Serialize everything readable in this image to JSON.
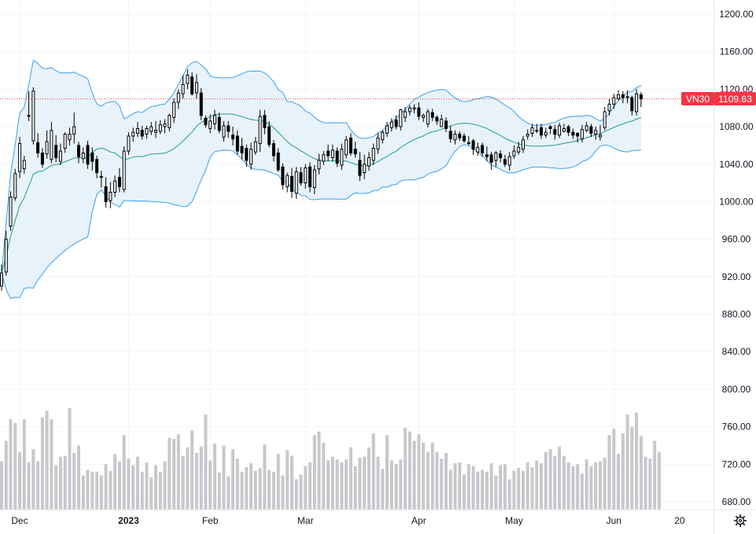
{
  "chart_data": {
    "type": "candlestick",
    "symbol": "VN30",
    "last_price": "1109.63",
    "colors": {
      "up_body": "#ffffff",
      "down_body": "#000000",
      "wick": "#000000",
      "bb_band": "#3ca0e6",
      "bb_fill": "#e8f2fb",
      "bb_basis": "#1e9e8e",
      "volume": "#c8c8cc",
      "price_line": "#e53935",
      "badge": "#f23645",
      "grid": "#f0f3fa"
    },
    "y_axis": {
      "range": [
        670,
        1210
      ],
      "ticks": [
        "1200.00",
        "1160.00",
        "1120.00",
        "1080.00",
        "1040.00",
        "1000.00",
        "960.00",
        "920.00",
        "880.00",
        "840.00",
        "800.00",
        "760.00",
        "720.00",
        "680.00"
      ]
    },
    "x_axis": {
      "labels": [
        {
          "text": "Dec",
          "bold": false,
          "index": 4
        },
        {
          "text": "2023",
          "bold": true,
          "index": 28
        },
        {
          "text": "Feb",
          "bold": false,
          "index": 46
        },
        {
          "text": "Mar",
          "bold": false,
          "index": 67
        },
        {
          "text": "Apr",
          "bold": false,
          "index": 92
        },
        {
          "text": "May",
          "bold": false,
          "index": 113
        },
        {
          "text": "Jun",
          "bold": false,
          "index": 135
        },
        {
          "text": "20",
          "bold": false,
          "index": 149.5
        }
      ]
    },
    "closes": [
      924,
      960,
      1005,
      1030,
      1062,
      1044,
      1092,
      1118,
      1052,
      1040,
      1064,
      1076,
      1047,
      1054,
      1072,
      1072,
      1080,
      1048,
      1052,
      1040,
      1043,
      1031,
      1026,
      1000,
      1010,
      1022,
      1016,
      1054,
      1070,
      1074,
      1078,
      1070,
      1078,
      1080,
      1076,
      1082,
      1083,
      1092,
      1106,
      1116,
      1125,
      1135,
      1115,
      1127,
      1092,
      1082,
      1086,
      1092,
      1076,
      1081,
      1075,
      1067,
      1054,
      1052,
      1044,
      1056,
      1064,
      1091,
      1079,
      1061,
      1049,
      1034,
      1018,
      1028,
      1011,
      1032,
      1020,
      1036,
      1016,
      1034,
      1044,
      1050,
      1049,
      1055,
      1041,
      1056,
      1066,
      1052,
      1051,
      1028,
      1040,
      1047,
      1057,
      1068,
      1074,
      1081,
      1085,
      1080,
      1098,
      1096,
      1100,
      1100,
      1091,
      1092,
      1096,
      1090,
      1086,
      1088,
      1078,
      1067,
      1072,
      1068,
      1065,
      1063,
      1056,
      1058,
      1052,
      1048,
      1042,
      1052,
      1047,
      1040,
      1048,
      1054,
      1058,
      1066,
      1072,
      1079,
      1076,
      1071,
      1074,
      1078,
      1072,
      1081,
      1078,
      1074,
      1071,
      1070,
      1077,
      1081,
      1073,
      1076,
      1071,
      1096,
      1104,
      1111,
      1114,
      1111,
      1112,
      1097,
      1115,
      1109.63
    ],
    "opens": [
      910,
      925,
      974,
      1004,
      1032,
      1035,
      1092,
      1065,
      1063,
      1052,
      1051,
      1045,
      1060,
      1043,
      1057,
      1066,
      1072,
      1060,
      1046,
      1060,
      1052,
      1045,
      1027,
      1016,
      1001,
      1010,
      1026,
      1013,
      1054,
      1070,
      1073,
      1076,
      1072,
      1075,
      1074,
      1075,
      1080,
      1079,
      1090,
      1106,
      1115,
      1126,
      1133,
      1116,
      1116,
      1089,
      1078,
      1083,
      1090,
      1069,
      1081,
      1071,
      1070,
      1059,
      1057,
      1040,
      1053,
      1062,
      1092,
      1080,
      1062,
      1052,
      1037,
      1016,
      1027,
      1009,
      1031,
      1020,
      1037,
      1015,
      1035,
      1043,
      1054,
      1047,
      1054,
      1039,
      1050,
      1068,
      1056,
      1044,
      1031,
      1038,
      1044,
      1056,
      1066,
      1073,
      1079,
      1087,
      1080,
      1090,
      1096,
      1099,
      1100,
      1090,
      1083,
      1095,
      1090,
      1080,
      1086,
      1075,
      1066,
      1072,
      1070,
      1062,
      1065,
      1053,
      1060,
      1050,
      1050,
      1044,
      1051,
      1045,
      1039,
      1049,
      1053,
      1056,
      1070,
      1073,
      1076,
      1079,
      1071,
      1080,
      1077,
      1071,
      1075,
      1080,
      1074,
      1073,
      1067,
      1076,
      1080,
      1072,
      1069,
      1079,
      1097,
      1104,
      1110,
      1114,
      1111,
      1111,
      1096,
      1114
    ],
    "highs": [
      933,
      969,
      1011,
      1035,
      1069,
      1049,
      1118,
      1122,
      1073,
      1057,
      1076,
      1085,
      1071,
      1062,
      1074,
      1079,
      1095,
      1064,
      1058,
      1065,
      1058,
      1049,
      1033,
      1026,
      1021,
      1028,
      1036,
      1059,
      1074,
      1079,
      1085,
      1081,
      1081,
      1085,
      1086,
      1087,
      1088,
      1094,
      1110,
      1120,
      1135,
      1141,
      1138,
      1136,
      1121,
      1092,
      1093,
      1098,
      1095,
      1086,
      1086,
      1080,
      1076,
      1068,
      1061,
      1063,
      1069,
      1098,
      1098,
      1086,
      1066,
      1057,
      1041,
      1031,
      1036,
      1037,
      1037,
      1040,
      1042,
      1039,
      1051,
      1054,
      1061,
      1061,
      1058,
      1062,
      1070,
      1073,
      1064,
      1053,
      1050,
      1053,
      1062,
      1073,
      1076,
      1085,
      1089,
      1092,
      1099,
      1101,
      1103,
      1104,
      1106,
      1094,
      1099,
      1099,
      1092,
      1093,
      1090,
      1081,
      1076,
      1075,
      1073,
      1070,
      1067,
      1063,
      1063,
      1059,
      1053,
      1054,
      1055,
      1050,
      1053,
      1060,
      1064,
      1070,
      1077,
      1083,
      1083,
      1083,
      1079,
      1082,
      1082,
      1084,
      1083,
      1082,
      1078,
      1074,
      1082,
      1085,
      1083,
      1080,
      1082,
      1101,
      1110,
      1115,
      1119,
      1118,
      1119,
      1113,
      1120,
      1117
    ],
    "lows": [
      905,
      921,
      969,
      1001,
      1025,
      1030,
      1086,
      1061,
      1047,
      1036,
      1046,
      1041,
      1042,
      1039,
      1052,
      1060,
      1062,
      1041,
      1041,
      1035,
      1033,
      1025,
      1015,
      994,
      993,
      1005,
      1010,
      1010,
      1050,
      1064,
      1069,
      1066,
      1067,
      1071,
      1068,
      1072,
      1073,
      1075,
      1084,
      1099,
      1110,
      1120,
      1113,
      1110,
      1087,
      1079,
      1073,
      1077,
      1073,
      1064,
      1068,
      1060,
      1050,
      1045,
      1037,
      1034,
      1050,
      1053,
      1072,
      1058,
      1043,
      1032,
      1013,
      1010,
      1004,
      1003,
      1017,
      1014,
      1010,
      1008,
      1029,
      1039,
      1043,
      1043,
      1037,
      1034,
      1046,
      1049,
      1047,
      1022,
      1024,
      1033,
      1039,
      1051,
      1062,
      1069,
      1075,
      1077,
      1076,
      1085,
      1092,
      1094,
      1087,
      1085,
      1079,
      1086,
      1082,
      1083,
      1074,
      1063,
      1061,
      1065,
      1063,
      1060,
      1050,
      1049,
      1048,
      1043,
      1034,
      1037,
      1042,
      1037,
      1033,
      1046,
      1050,
      1052,
      1066,
      1069,
      1073,
      1067,
      1068,
      1072,
      1066,
      1068,
      1074,
      1070,
      1067,
      1063,
      1063,
      1074,
      1069,
      1066,
      1065,
      1076,
      1092,
      1099,
      1108,
      1105,
      1105,
      1092,
      1092,
      1101
    ],
    "volumes": [
      723,
      745,
      768,
      764,
      733,
      768,
      722,
      736,
      723,
      770,
      777,
      768,
      719,
      728,
      729,
      780,
      732,
      740,
      708,
      714,
      712,
      712,
      708,
      720,
      713,
      731,
      723,
      751,
      726,
      719,
      728,
      712,
      722,
      706,
      719,
      712,
      723,
      748,
      747,
      752,
      729,
      738,
      756,
      732,
      739,
      773,
      724,
      742,
      711,
      740,
      707,
      736,
      726,
      712,
      717,
      721,
      713,
      716,
      741,
      714,
      712,
      731,
      708,
      735,
      729,
      704,
      709,
      718,
      722,
      751,
      755,
      743,
      724,
      728,
      725,
      722,
      725,
      738,
      718,
      727,
      728,
      738,
      753,
      728,
      715,
      751,
      724,
      720,
      725,
      759,
      755,
      745,
      752,
      743,
      733,
      743,
      733,
      726,
      732,
      714,
      721,
      722,
      709,
      720,
      718,
      712,
      714,
      712,
      721,
      708,
      719,
      720,
      704,
      713,
      716,
      713,
      722,
      717,
      724,
      721,
      733,
      736,
      729,
      739,
      729,
      722,
      718,
      720,
      710,
      725,
      718,
      722,
      723,
      727,
      751,
      758,
      731,
      753,
      773,
      760,
      775,
      750,
      728,
      726,
      745,
      733
    ]
  }
}
